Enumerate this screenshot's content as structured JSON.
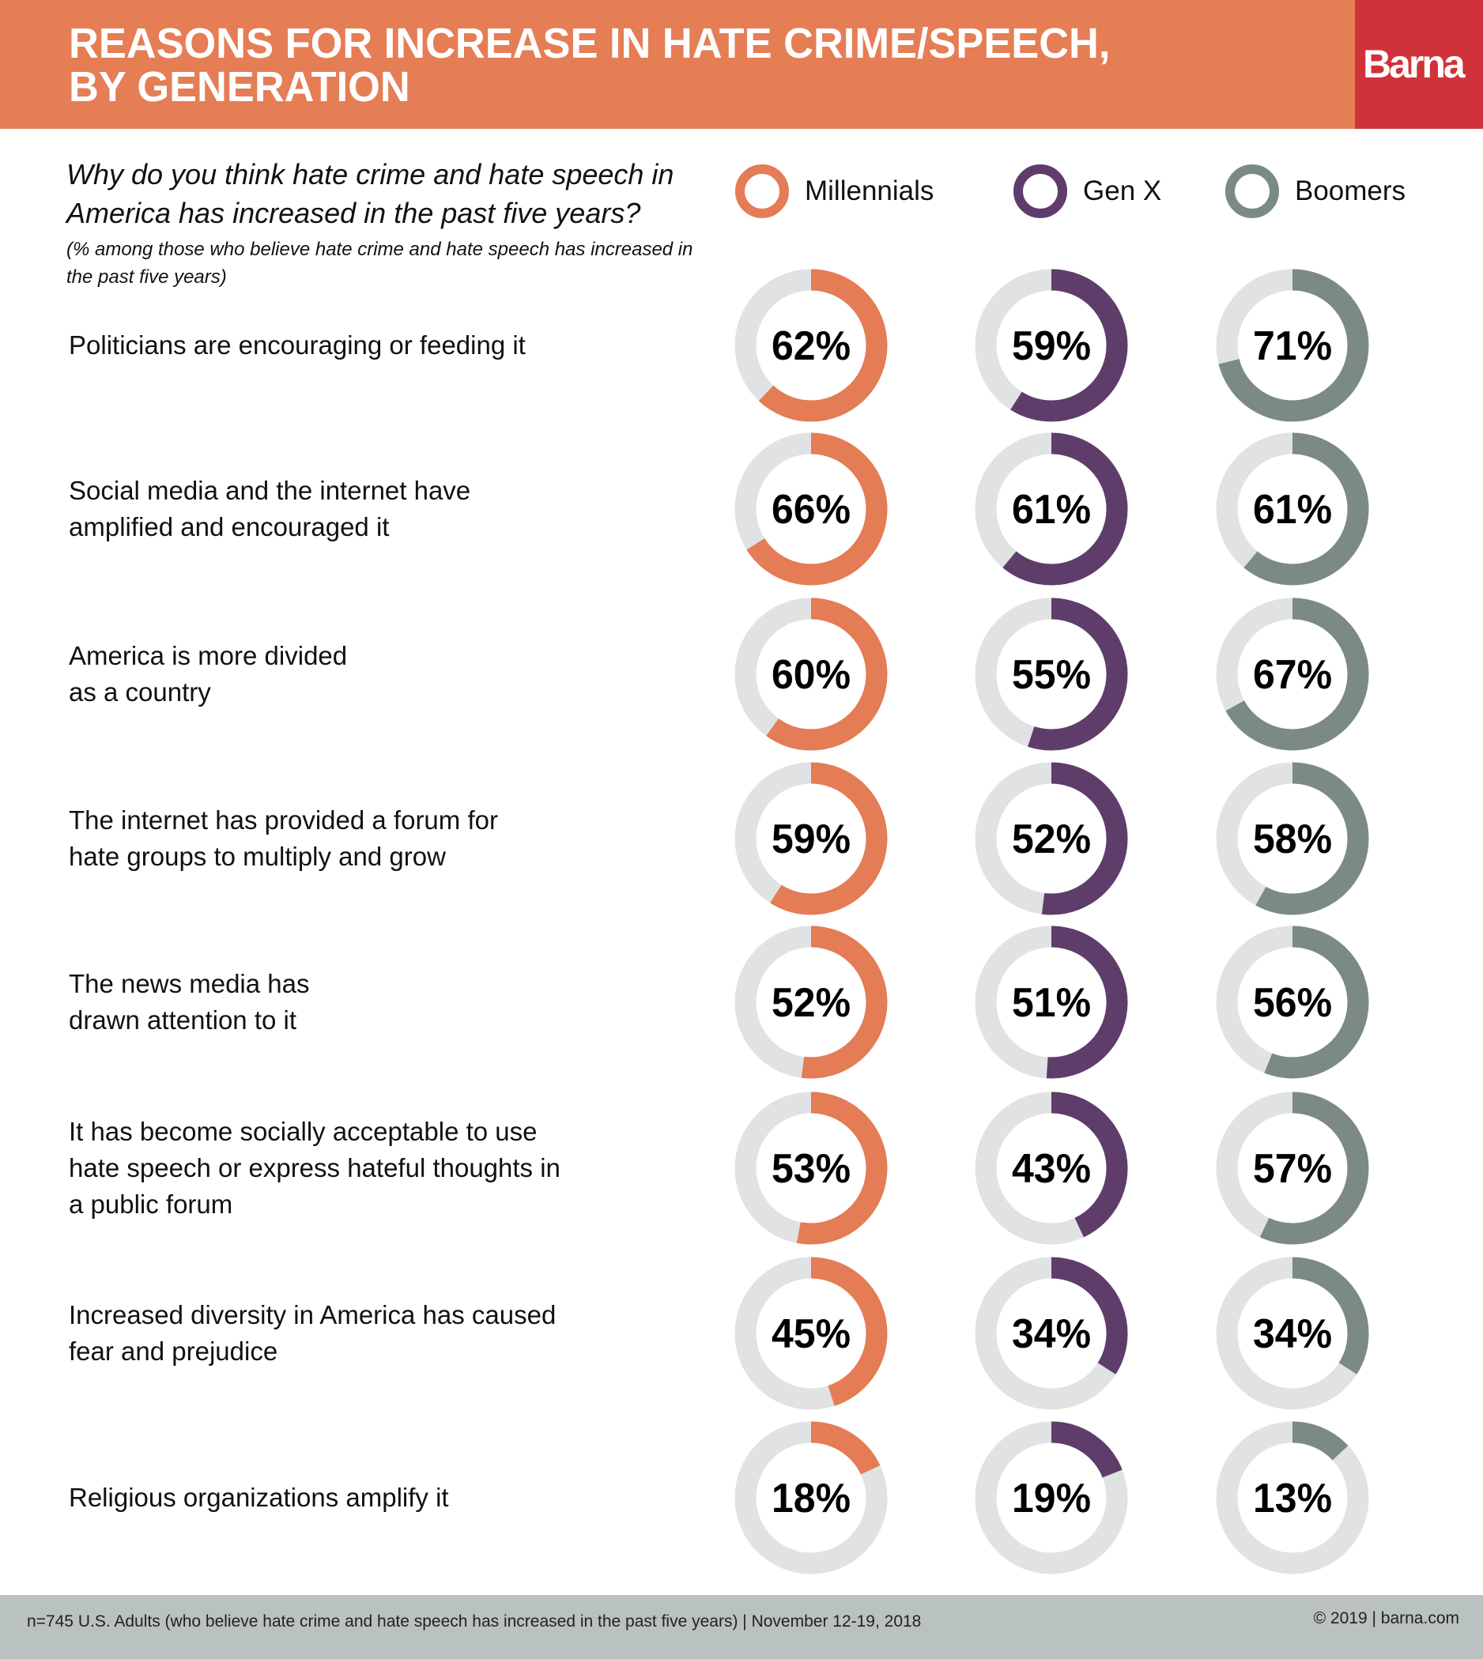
{
  "header": {
    "title_line1": "REASONS FOR INCREASE IN HATE CRIME/SPEECH,",
    "title_line2": "BY GENERATION",
    "logo": "Barna"
  },
  "question": "Why do you think hate crime and hate speech in America has increased in the past five years?",
  "note": "(% among those who believe hate crime and hate speech has increased in the past five years)",
  "colors": {
    "header": "#E57D55",
    "logo_bg": "#D0323A",
    "track": "#E1E2E3",
    "footer": "#BAC2C1"
  },
  "chart_data": {
    "type": "donut",
    "unit": "%",
    "series": [
      {
        "name": "Millennials",
        "color": "#E47C55",
        "values": [
          62,
          66,
          60,
          59,
          52,
          53,
          45,
          18
        ]
      },
      {
        "name": "Gen X",
        "color": "#5E3D6A",
        "values": [
          59,
          61,
          55,
          52,
          51,
          43,
          34,
          19
        ]
      },
      {
        "name": "Boomers",
        "color": "#7B8A87",
        "values": [
          71,
          61,
          67,
          58,
          56,
          57,
          34,
          13
        ]
      }
    ],
    "categories": [
      [
        "Politicians are encouraging or feeding it"
      ],
      [
        "Social media and the internet have",
        "amplified and encouraged it"
      ],
      [
        "America is more divided",
        "as a country"
      ],
      [
        "The internet has provided a forum for",
        "hate groups to multiply and grow"
      ],
      [
        "The news media has",
        "drawn attention to it"
      ],
      [
        "It has become socially acceptable to use",
        "hate speech or express hateful thoughts in",
        "a public forum"
      ],
      [
        "Increased diversity in America has caused",
        "fear and prejudice"
      ],
      [
        "Religious organizations amplify it"
      ]
    ]
  },
  "footer": {
    "source": "n=745 U.S. Adults (who believe hate crime and hate speech has increased in the past five years) | November 12-19, 2018",
    "copyright": "© 2019 | barna.com"
  }
}
